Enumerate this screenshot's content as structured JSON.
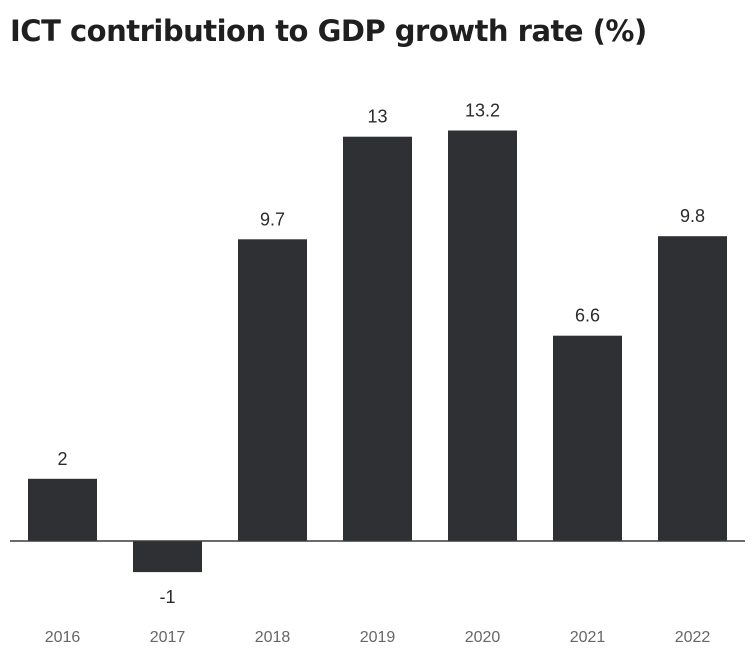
{
  "chart_data": {
    "type": "bar",
    "title": "ICT contribution to GDP growth rate (%)",
    "categories": [
      "2016",
      "2017",
      "2018",
      "2019",
      "2020",
      "2021",
      "2022"
    ],
    "values": [
      2,
      -1,
      9.7,
      13,
      13.2,
      6.6,
      9.8
    ],
    "value_labels": [
      "2",
      "-1",
      "9.7",
      "13",
      "13.2",
      "6.6",
      "9.8"
    ],
    "xlabel": "",
    "ylabel": "",
    "ylim": [
      -1,
      13.2
    ],
    "grid": false,
    "legend": "none",
    "colors": {
      "bar": "#2e3033",
      "baseline": "#3a3a3a",
      "label": "#2b2b2b",
      "tick": "#666666"
    }
  }
}
